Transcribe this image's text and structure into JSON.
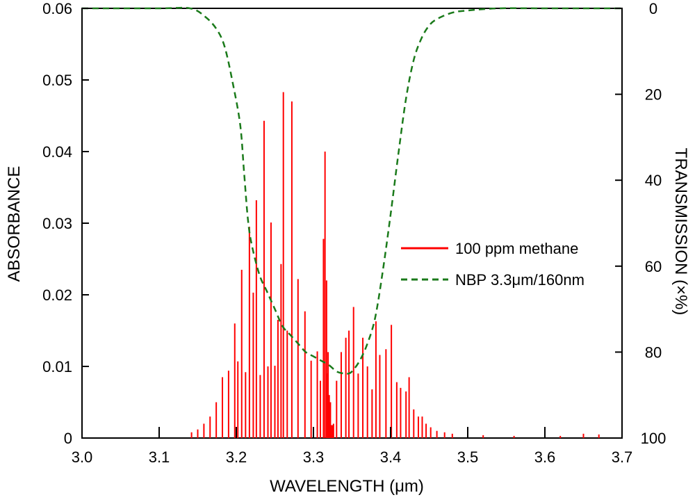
{
  "chart_data": {
    "type": "line",
    "xlabel": "WAVELENGTH (μm)",
    "ylabel_left": "ABSORBANCE",
    "ylabel_right": "TRANSMISSION (×%)",
    "xlim": [
      3.0,
      3.7
    ],
    "ylim_left": [
      0,
      0.06
    ],
    "ylim_right": [
      0,
      100
    ],
    "right_axis_inverted": true,
    "x_ticks": [
      "3.0",
      "3.1",
      "3.2",
      "3.3",
      "3.4",
      "3.5",
      "3.6",
      "3.7"
    ],
    "y_ticks_left": [
      "0",
      "0.01",
      "0.02",
      "0.03",
      "0.04",
      "0.05",
      "0.06"
    ],
    "y_ticks_right": [
      "0",
      "20",
      "40",
      "60",
      "80",
      "100"
    ],
    "legend_position": "middle-right",
    "colors": {
      "methane": "#ff0000",
      "filter": "#1a7a1a"
    },
    "series": [
      {
        "name": "100 ppm methane",
        "style": "solid-stick",
        "axis": "left",
        "x": [
          3.142,
          3.15,
          3.158,
          3.166,
          3.174,
          3.182,
          3.19,
          3.198,
          3.202,
          3.207,
          3.212,
          3.217,
          3.222,
          3.226,
          3.231,
          3.236,
          3.241,
          3.245,
          3.25,
          3.254,
          3.258,
          3.261,
          3.266,
          3.272,
          3.28,
          3.289,
          3.297,
          3.305,
          3.309,
          3.313,
          3.315,
          3.317,
          3.319,
          3.322,
          3.326,
          3.33,
          3.336,
          3.342,
          3.346,
          3.352,
          3.358,
          3.364,
          3.37,
          3.376,
          3.381,
          3.386,
          3.394,
          3.401,
          3.408,
          3.413,
          3.42,
          3.424,
          3.43,
          3.436,
          3.441,
          3.446,
          3.452,
          3.46,
          3.47,
          3.48,
          3.5,
          3.52,
          3.56,
          3.6,
          3.62,
          3.65,
          3.67
        ],
        "y": [
          0.0008,
          0.0012,
          0.002,
          0.003,
          0.005,
          0.0085,
          0.0094,
          0.016,
          0.0107,
          0.0235,
          0.0092,
          0.0295,
          0.0203,
          0.0332,
          0.0088,
          0.0443,
          0.01,
          0.0301,
          0.0101,
          0.0165,
          0.0243,
          0.0483,
          0.015,
          0.047,
          0.0222,
          0.0177,
          0.0108,
          0.0121,
          0.008,
          0.0278,
          0.04,
          0.022,
          0.012,
          0.005,
          0.002,
          0.008,
          0.012,
          0.014,
          0.015,
          0.0183,
          0.009,
          0.014,
          0.01,
          0.0068,
          0.0163,
          0.0116,
          0.0124,
          0.0158,
          0.0078,
          0.007,
          0.0065,
          0.0085,
          0.004,
          0.003,
          0.003,
          0.002,
          0.0015,
          0.001,
          0.0008,
          0.0006,
          0.0004,
          0.0004,
          0.0003,
          0.0004,
          0.0003,
          0.0006,
          0.0005
        ]
      },
      {
        "name": "NBP 3.3μm/160nm",
        "style": "dashed",
        "axis": "right",
        "x": [
          3.0,
          3.1,
          3.14,
          3.16,
          3.175,
          3.185,
          3.195,
          3.205,
          3.21,
          3.215,
          3.22,
          3.23,
          3.24,
          3.25,
          3.26,
          3.27,
          3.28,
          3.29,
          3.3,
          3.31,
          3.32,
          3.33,
          3.34,
          3.345,
          3.35,
          3.36,
          3.37,
          3.38,
          3.39,
          3.4,
          3.41,
          3.42,
          3.43,
          3.44,
          3.45,
          3.46,
          3.48,
          3.5,
          3.54,
          3.6,
          3.7
        ],
        "y": [
          0,
          0,
          0,
          2,
          5,
          9,
          17,
          27,
          38,
          49,
          55,
          62,
          66,
          70,
          74,
          76,
          78,
          80,
          81,
          82,
          83,
          84.5,
          85,
          85,
          84.5,
          82,
          78,
          72,
          61,
          48,
          34,
          21,
          12,
          7,
          4,
          2.5,
          1,
          0.5,
          0,
          0,
          0
        ]
      }
    ]
  }
}
